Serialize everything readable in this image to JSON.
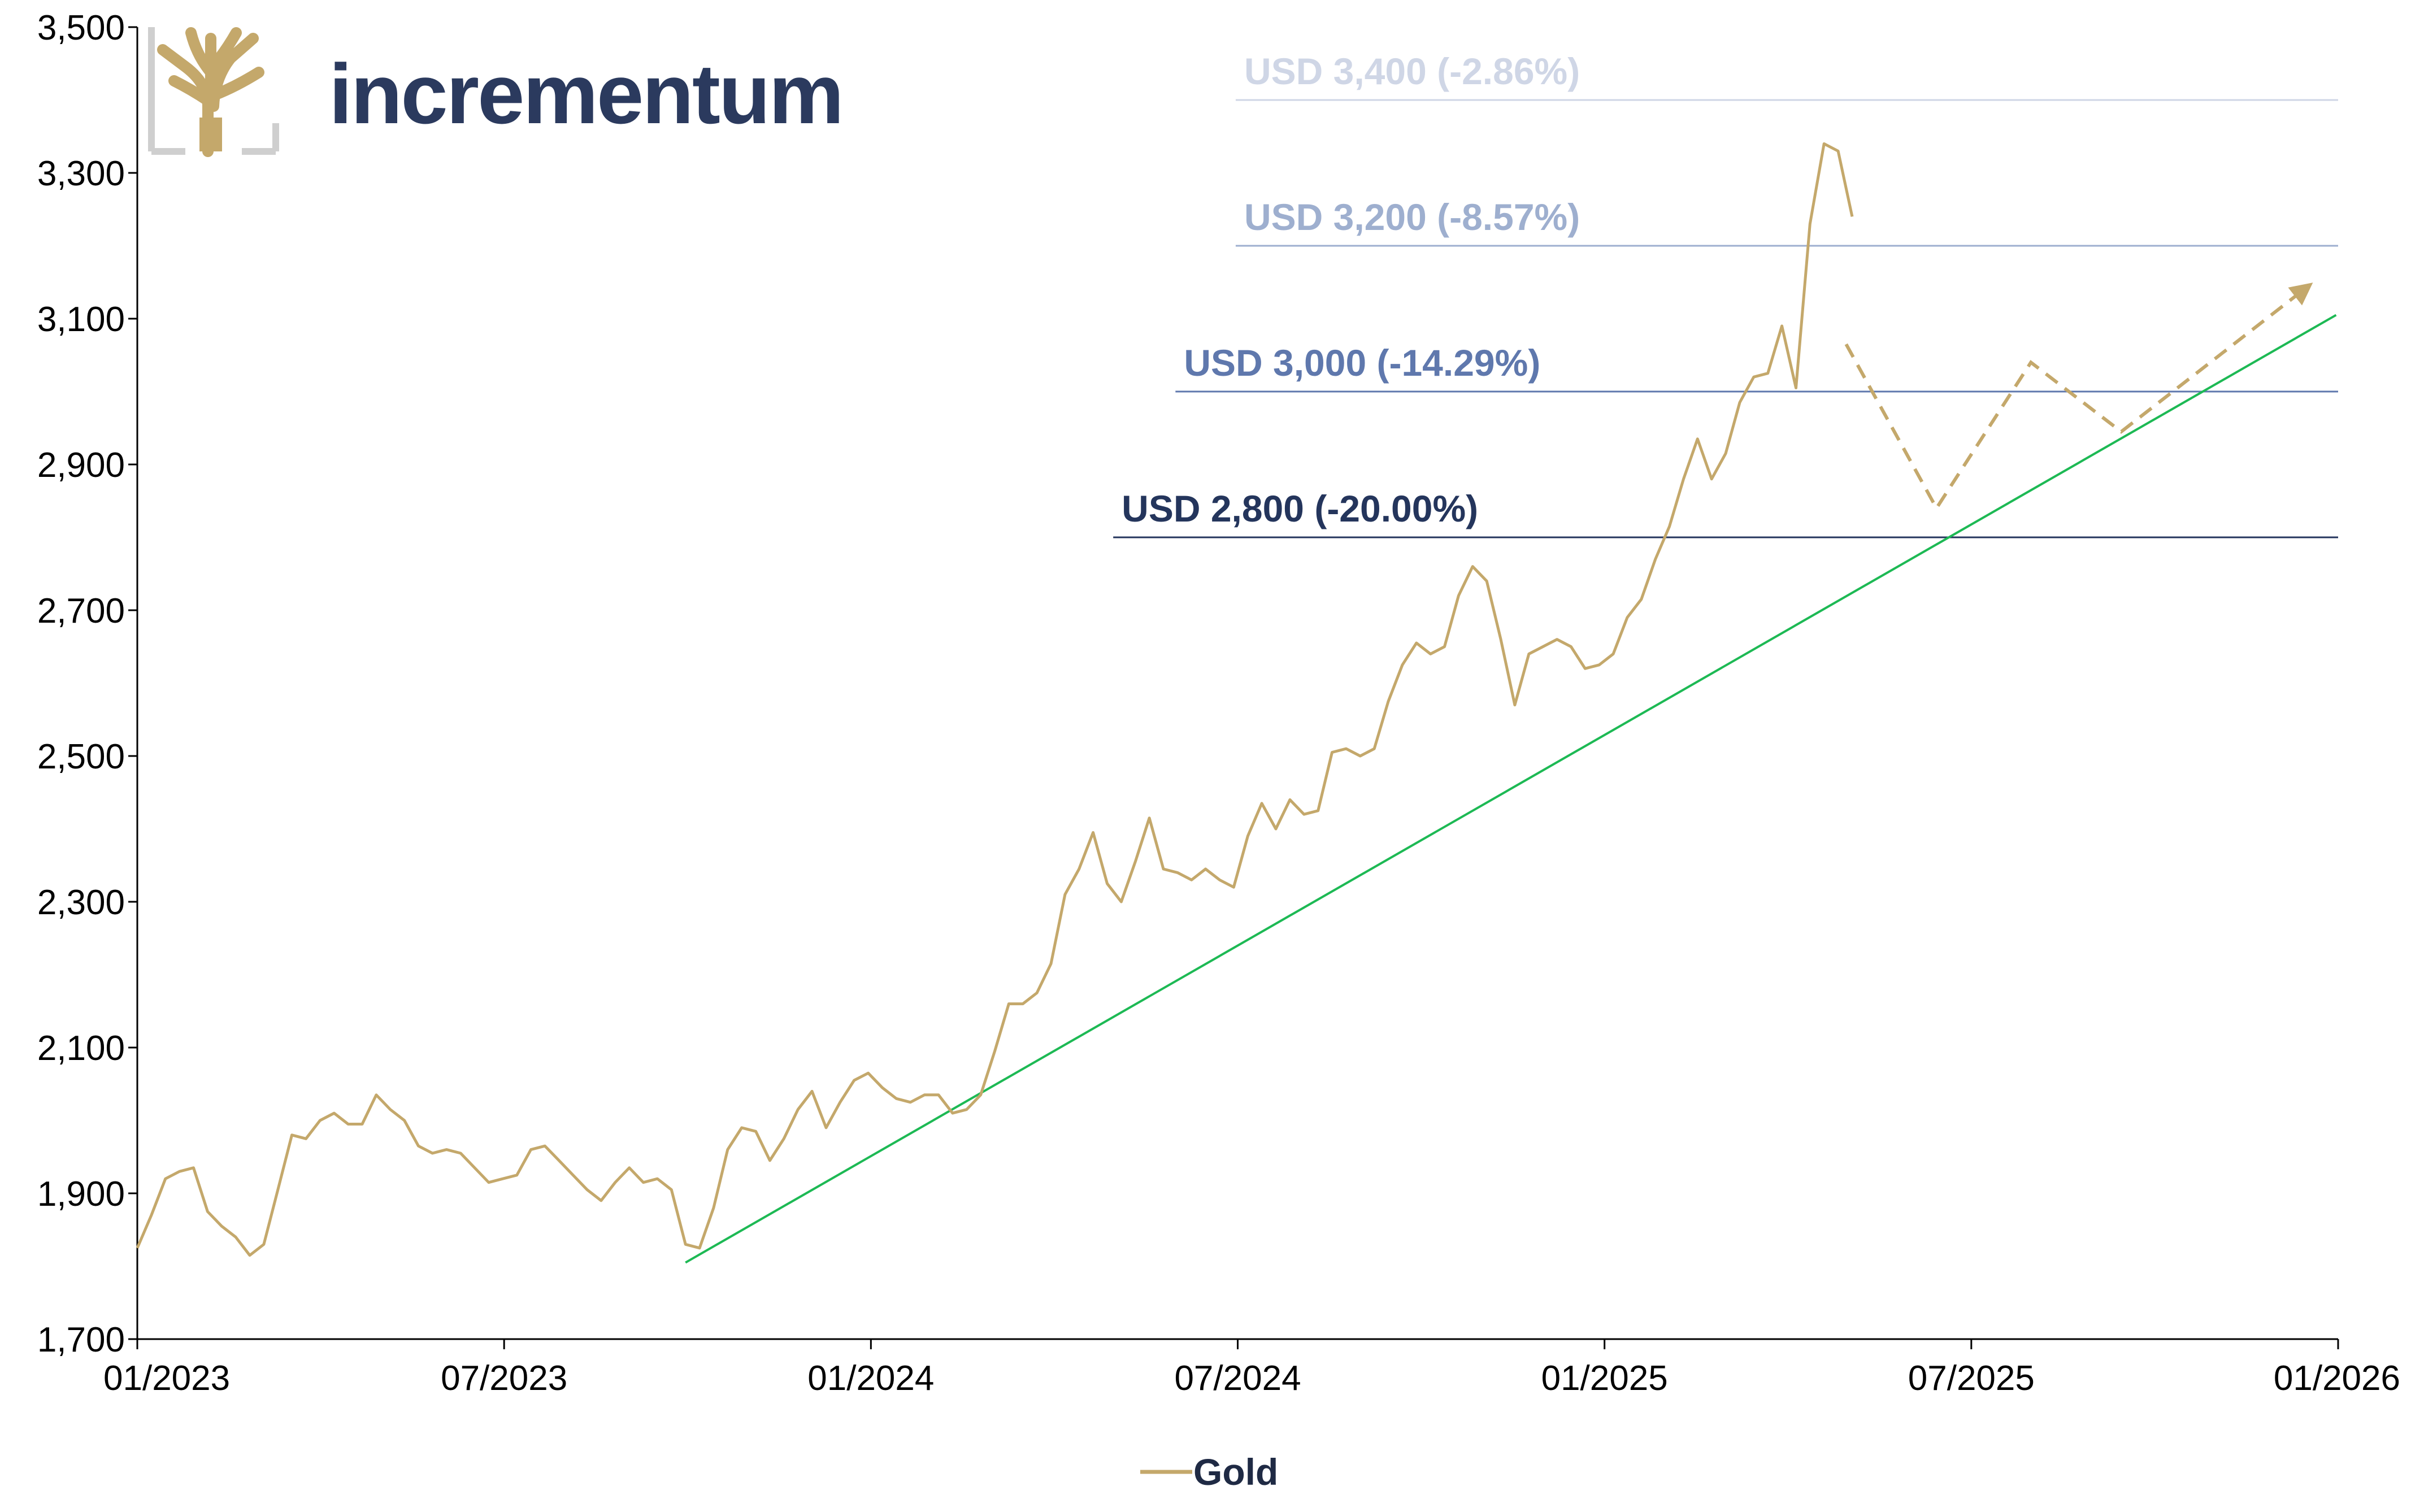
{
  "brand": {
    "name": "incrementum",
    "logo": "tree-logo-icon"
  },
  "legend": {
    "label": "Gold"
  },
  "colors": {
    "gold": "#c4a86b",
    "trend": "#1db954",
    "axis": "#000000",
    "brand": "#2b3a5e"
  },
  "chart_data": {
    "type": "line",
    "title": "",
    "xlabel": "",
    "ylabel": "",
    "ylim": [
      1700,
      3500
    ],
    "xlim": [
      "2023-01-01",
      "2026-01-01"
    ],
    "x_ticks": [
      "01/2023",
      "07/2023",
      "01/2024",
      "07/2024",
      "01/2025",
      "07/2025",
      "01/2026"
    ],
    "y_ticks": [
      "1,700",
      "1,900",
      "2,100",
      "2,300",
      "2,500",
      "2,700",
      "2,900",
      "3,100",
      "3,300",
      "3,500"
    ],
    "grid": false,
    "legend_position": "bottom-center",
    "series": [
      {
        "name": "Gold",
        "color": "#c4a86b",
        "points": [
          [
            "2023-01-01",
            1825
          ],
          [
            "2023-01-08",
            1870
          ],
          [
            "2023-01-15",
            1920
          ],
          [
            "2023-01-22",
            1930
          ],
          [
            "2023-01-29",
            1935
          ],
          [
            "2023-02-05",
            1875
          ],
          [
            "2023-02-12",
            1855
          ],
          [
            "2023-02-19",
            1840
          ],
          [
            "2023-02-26",
            1815
          ],
          [
            "2023-03-05",
            1830
          ],
          [
            "2023-03-12",
            1905
          ],
          [
            "2023-03-19",
            1980
          ],
          [
            "2023-03-26",
            1975
          ],
          [
            "2023-04-02",
            2000
          ],
          [
            "2023-04-09",
            2010
          ],
          [
            "2023-04-16",
            1995
          ],
          [
            "2023-04-23",
            1995
          ],
          [
            "2023-04-30",
            2035
          ],
          [
            "2023-05-07",
            2015
          ],
          [
            "2023-05-14",
            2000
          ],
          [
            "2023-05-21",
            1965
          ],
          [
            "2023-05-28",
            1955
          ],
          [
            "2023-06-04",
            1960
          ],
          [
            "2023-06-11",
            1955
          ],
          [
            "2023-06-18",
            1935
          ],
          [
            "2023-06-25",
            1915
          ],
          [
            "2023-07-02",
            1920
          ],
          [
            "2023-07-09",
            1925
          ],
          [
            "2023-07-16",
            1960
          ],
          [
            "2023-07-23",
            1965
          ],
          [
            "2023-07-30",
            1945
          ],
          [
            "2023-08-06",
            1925
          ],
          [
            "2023-08-13",
            1905
          ],
          [
            "2023-08-20",
            1890
          ],
          [
            "2023-08-27",
            1915
          ],
          [
            "2023-09-03",
            1935
          ],
          [
            "2023-09-10",
            1915
          ],
          [
            "2023-09-17",
            1920
          ],
          [
            "2023-09-24",
            1905
          ],
          [
            "2023-10-01",
            1830
          ],
          [
            "2023-10-08",
            1825
          ],
          [
            "2023-10-15",
            1880
          ],
          [
            "2023-10-22",
            1960
          ],
          [
            "2023-10-29",
            1990
          ],
          [
            "2023-11-05",
            1985
          ],
          [
            "2023-11-12",
            1945
          ],
          [
            "2023-11-19",
            1975
          ],
          [
            "2023-11-26",
            2015
          ],
          [
            "2023-12-03",
            2040
          ],
          [
            "2023-12-10",
            1990
          ],
          [
            "2023-12-17",
            2025
          ],
          [
            "2023-12-24",
            2055
          ],
          [
            "2023-12-31",
            2065
          ],
          [
            "2024-01-07",
            2045
          ],
          [
            "2024-01-14",
            2030
          ],
          [
            "2024-01-21",
            2025
          ],
          [
            "2024-01-28",
            2035
          ],
          [
            "2024-02-04",
            2035
          ],
          [
            "2024-02-11",
            2010
          ],
          [
            "2024-02-18",
            2015
          ],
          [
            "2024-02-25",
            2035
          ],
          [
            "2024-03-03",
            2095
          ],
          [
            "2024-03-10",
            2160
          ],
          [
            "2024-03-17",
            2160
          ],
          [
            "2024-03-24",
            2175
          ],
          [
            "2024-03-31",
            2215
          ],
          [
            "2024-04-07",
            2310
          ],
          [
            "2024-04-14",
            2345
          ],
          [
            "2024-04-21",
            2395
          ],
          [
            "2024-04-28",
            2325
          ],
          [
            "2024-05-05",
            2300
          ],
          [
            "2024-05-12",
            2355
          ],
          [
            "2024-05-19",
            2415
          ],
          [
            "2024-05-26",
            2345
          ],
          [
            "2024-06-02",
            2340
          ],
          [
            "2024-06-09",
            2330
          ],
          [
            "2024-06-16",
            2345
          ],
          [
            "2024-06-23",
            2330
          ],
          [
            "2024-06-30",
            2320
          ],
          [
            "2024-07-07",
            2390
          ],
          [
            "2024-07-14",
            2435
          ],
          [
            "2024-07-21",
            2400
          ],
          [
            "2024-07-28",
            2440
          ],
          [
            "2024-08-04",
            2420
          ],
          [
            "2024-08-11",
            2425
          ],
          [
            "2024-08-18",
            2505
          ],
          [
            "2024-08-25",
            2510
          ],
          [
            "2024-09-01",
            2500
          ],
          [
            "2024-09-08",
            2510
          ],
          [
            "2024-09-15",
            2575
          ],
          [
            "2024-09-22",
            2625
          ],
          [
            "2024-09-29",
            2655
          ],
          [
            "2024-10-06",
            2640
          ],
          [
            "2024-10-13",
            2650
          ],
          [
            "2024-10-20",
            2720
          ],
          [
            "2024-10-27",
            2760
          ],
          [
            "2024-11-03",
            2740
          ],
          [
            "2024-11-10",
            2660
          ],
          [
            "2024-11-17",
            2570
          ],
          [
            "2024-11-24",
            2640
          ],
          [
            "2024-12-01",
            2650
          ],
          [
            "2024-12-08",
            2660
          ],
          [
            "2024-12-15",
            2650
          ],
          [
            "2024-12-22",
            2620
          ],
          [
            "2024-12-29",
            2625
          ],
          [
            "2025-01-05",
            2640
          ],
          [
            "2025-01-12",
            2690
          ],
          [
            "2025-01-19",
            2715
          ],
          [
            "2025-01-26",
            2770
          ],
          [
            "2025-02-02",
            2815
          ],
          [
            "2025-02-09",
            2880
          ],
          [
            "2025-02-16",
            2935
          ],
          [
            "2025-02-23",
            2880
          ],
          [
            "2025-03-02",
            2915
          ],
          [
            "2025-03-09",
            2985
          ],
          [
            "2025-03-16",
            3020
          ],
          [
            "2025-03-23",
            3025
          ],
          [
            "2025-03-30",
            3090
          ],
          [
            "2025-04-06",
            3005
          ],
          [
            "2025-04-13",
            3230
          ],
          [
            "2025-04-20",
            3340
          ],
          [
            "2025-04-27",
            3330
          ],
          [
            "2025-05-04",
            3240
          ]
        ]
      }
    ],
    "trendline": {
      "color": "#1db954",
      "from": [
        "2023-10-01",
        1805
      ],
      "to": [
        "2025-12-31",
        3105
      ]
    },
    "scenario_path": {
      "color": "#c4a86b",
      "style": "dashed",
      "points": [
        [
          "2025-05-01",
          3065
        ],
        [
          "2025-06-15",
          2840
        ],
        [
          "2025-08-01",
          3040
        ],
        [
          "2025-09-15",
          2945
        ],
        [
          "2025-12-15",
          3140
        ]
      ]
    },
    "levels": [
      {
        "label": "USD 3,400 (-2.86%)",
        "value": 3400,
        "x_start": "2024-07-01",
        "color": "#cfd6e6"
      },
      {
        "label": "USD 3,200 (-8.57%)",
        "value": 3200,
        "x_start": "2024-07-01",
        "color": "#9eafcf"
      },
      {
        "label": "USD 3,000 (-14.29%)",
        "value": 3000,
        "x_start": "2024-06-01",
        "color": "#5f78ad"
      },
      {
        "label": "USD 2,800 (-20.00%)",
        "value": 2800,
        "x_start": "2024-05-01",
        "color": "#24355c"
      }
    ]
  }
}
